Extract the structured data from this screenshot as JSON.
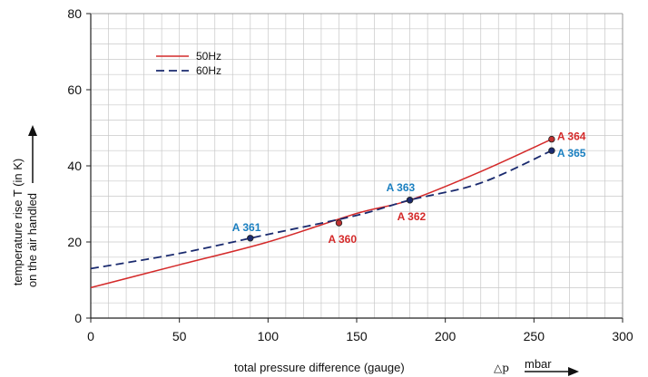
{
  "chart_data": {
    "type": "line",
    "title": "",
    "xlabel": "total pressure difference (gauge)",
    "xlabel_symbol": "△p",
    "xunit": "mbar",
    "ylabel_line1": "temperature rise T (in K)",
    "ylabel_line2": "on the air handled",
    "xlim": [
      0,
      300
    ],
    "ylim": [
      0,
      80
    ],
    "x_ticks": [
      "0",
      "50",
      "100",
      "150",
      "200",
      "250",
      "300"
    ],
    "y_ticks": [
      "0",
      "20",
      "40",
      "60",
      "80"
    ],
    "grid": true,
    "legend_position": "top-left",
    "series": [
      {
        "name": "50Hz",
        "color": "#d42a2a",
        "style": "solid",
        "x": [
          0,
          50,
          100,
          150,
          180,
          220,
          260
        ],
        "y": [
          8,
          14,
          20,
          27.5,
          31,
          38.5,
          47
        ]
      },
      {
        "name": "60Hz",
        "color": "#1a2a6e",
        "style": "dashed",
        "x": [
          0,
          50,
          100,
          150,
          180,
          220,
          260
        ],
        "y": [
          13,
          17,
          22,
          27,
          31,
          35.5,
          44
        ]
      }
    ],
    "points": [
      {
        "label": "A 360",
        "x": 140,
        "y": 25,
        "series": "50Hz"
      },
      {
        "label": "A 361",
        "x": 90,
        "y": 21,
        "series": "60Hz"
      },
      {
        "label": "A 362",
        "x": 180,
        "y": 31,
        "series": "50Hz"
      },
      {
        "label": "A 363",
        "x": 180,
        "y": 31,
        "series": "60Hz"
      },
      {
        "label": "A 364",
        "x": 260,
        "y": 47,
        "series": "50Hz"
      },
      {
        "label": "A 365",
        "x": 260,
        "y": 44,
        "series": "60Hz"
      }
    ],
    "label_colors": {
      "50Hz": "#d42a2a",
      "60Hz": "#1a7fc0"
    },
    "point_fill": {
      "50Hz": "#c03030",
      "60Hz": "#1a2a6e"
    }
  }
}
